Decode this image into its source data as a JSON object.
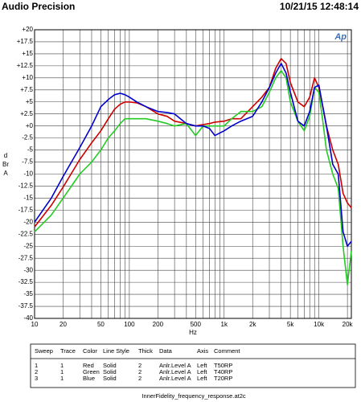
{
  "chart_data": {
    "type": "line",
    "title": "Audio Precision",
    "timestamp": "10/21/15 12:48:14",
    "logo": "Ap",
    "x_label": "Hz",
    "y_label": "dBrA",
    "log_x": true,
    "grid": true,
    "xlim": [
      10,
      22000
    ],
    "ylim": [
      -40,
      20
    ],
    "xticks": [
      10,
      {
        "value": 20,
        "label": "20"
      },
      {
        "value": 30,
        "label": null
      },
      {
        "value": 40,
        "label": null
      },
      50,
      {
        "value": 60,
        "label": null
      },
      {
        "value": 70,
        "label": null
      },
      {
        "value": 80,
        "label": null
      },
      {
        "value": 90,
        "label": null
      },
      100,
      200,
      {
        "value": 300,
        "label": null
      },
      {
        "value": 400,
        "label": null
      },
      500,
      {
        "value": 600,
        "label": null
      },
      {
        "value": 700,
        "label": null
      },
      {
        "value": 800,
        "label": null
      },
      {
        "value": 900,
        "label": null
      },
      {
        "value": 1000,
        "label": "1k"
      },
      {
        "value": 2000,
        "label": "2k"
      },
      {
        "value": 3000,
        "label": null
      },
      {
        "value": 4000,
        "label": null
      },
      {
        "value": 5000,
        "label": "5k"
      },
      {
        "value": 6000,
        "label": null
      },
      {
        "value": 7000,
        "label": null
      },
      {
        "value": 8000,
        "label": null
      },
      {
        "value": 9000,
        "label": null
      },
      {
        "value": 10000,
        "label": "10k"
      },
      {
        "value": 20000,
        "label": "20k"
      }
    ],
    "yticks": [
      {
        "value": 20,
        "label": "+20"
      },
      {
        "value": 17.5,
        "label": "+17.5"
      },
      {
        "value": 15,
        "label": "+15"
      },
      {
        "value": 12.5,
        "label": "+12.5"
      },
      {
        "value": 10,
        "label": "+10"
      },
      {
        "value": 7.5,
        "label": "+7.5"
      },
      {
        "value": 5,
        "label": "+5"
      },
      {
        "value": 2.5,
        "label": "+2.5"
      },
      {
        "value": 0,
        "label": "+0"
      },
      -2.5,
      -5,
      -7.5,
      -10,
      -12.5,
      -15,
      -17.5,
      -20,
      -22.5,
      -25,
      -27.5,
      -30,
      -32.5,
      -35,
      -37.5,
      -40
    ],
    "x": [
      10,
      15,
      20,
      30,
      40,
      50,
      60,
      70,
      80,
      90,
      100,
      120,
      150,
      200,
      250,
      300,
      400,
      500,
      600,
      700,
      800,
      1000,
      1200,
      1500,
      2000,
      2500,
      3000,
      3500,
      4000,
      4500,
      5000,
      6000,
      7000,
      8000,
      9000,
      10000,
      11000,
      12000,
      14000,
      16000,
      18000,
      20000,
      22000
    ],
    "series": [
      {
        "name": "T50RP",
        "color": "#cc0000",
        "values": [
          -21,
          -16.5,
          -12.7,
          -7,
          -3.5,
          -1,
          1.5,
          3.5,
          4.5,
          5,
          5,
          4.8,
          4,
          2.5,
          2,
          1,
          0.5,
          0,
          0.3,
          0.5,
          0.8,
          1,
          1.5,
          1.5,
          4,
          6,
          8,
          12,
          14,
          13,
          9,
          5,
          4,
          6,
          10,
          8,
          4,
          0,
          -5,
          -8,
          -14,
          -16,
          -17
        ]
      },
      {
        "name": "T40RP",
        "color": "#22cc22",
        "values": [
          -22,
          -18.5,
          -15,
          -10,
          -7.5,
          -5,
          -2.5,
          -1,
          0.5,
          1.5,
          1.5,
          1.5,
          1.5,
          1,
          0.5,
          0,
          0.5,
          -2,
          0,
          0,
          0,
          0,
          1.5,
          3,
          3,
          4,
          7,
          10,
          11.5,
          10,
          5,
          1,
          -1,
          2,
          8,
          7,
          1,
          -5,
          -10,
          -13,
          -25,
          -33,
          -26
        ]
      },
      {
        "name": "T20RP",
        "color": "#0000cc",
        "values": [
          -20,
          -15,
          -10.5,
          -4.5,
          0,
          4,
          5.5,
          6.5,
          6.8,
          6.5,
          6,
          5,
          4,
          3,
          2.8,
          2.5,
          0.5,
          0,
          0,
          -0.5,
          -2,
          -1,
          0,
          1,
          2,
          5,
          8,
          11,
          13,
          11,
          7,
          1,
          0,
          3,
          8,
          8.5,
          4,
          0,
          -8,
          -10,
          -22,
          -25,
          -24
        ]
      }
    ],
    "legend_table": {
      "headers": [
        "Sweep",
        "Trace",
        "Color",
        "Line Style",
        "Thick",
        "Data",
        "Axis",
        "Comment"
      ],
      "rows": [
        [
          "1",
          "1",
          "Red",
          "Solid",
          "2",
          "Anlr.Level A",
          "Left"
        ],
        [
          "2",
          "1",
          "Green",
          "Solid",
          "2",
          "Anlr.Level A",
          "Left"
        ],
        [
          "3",
          "1",
          "Blue",
          "Solid",
          "2",
          "Anlr.Level A",
          "Left"
        ]
      ]
    },
    "filename": "InnerFidelity_frequency_response.at2c"
  }
}
